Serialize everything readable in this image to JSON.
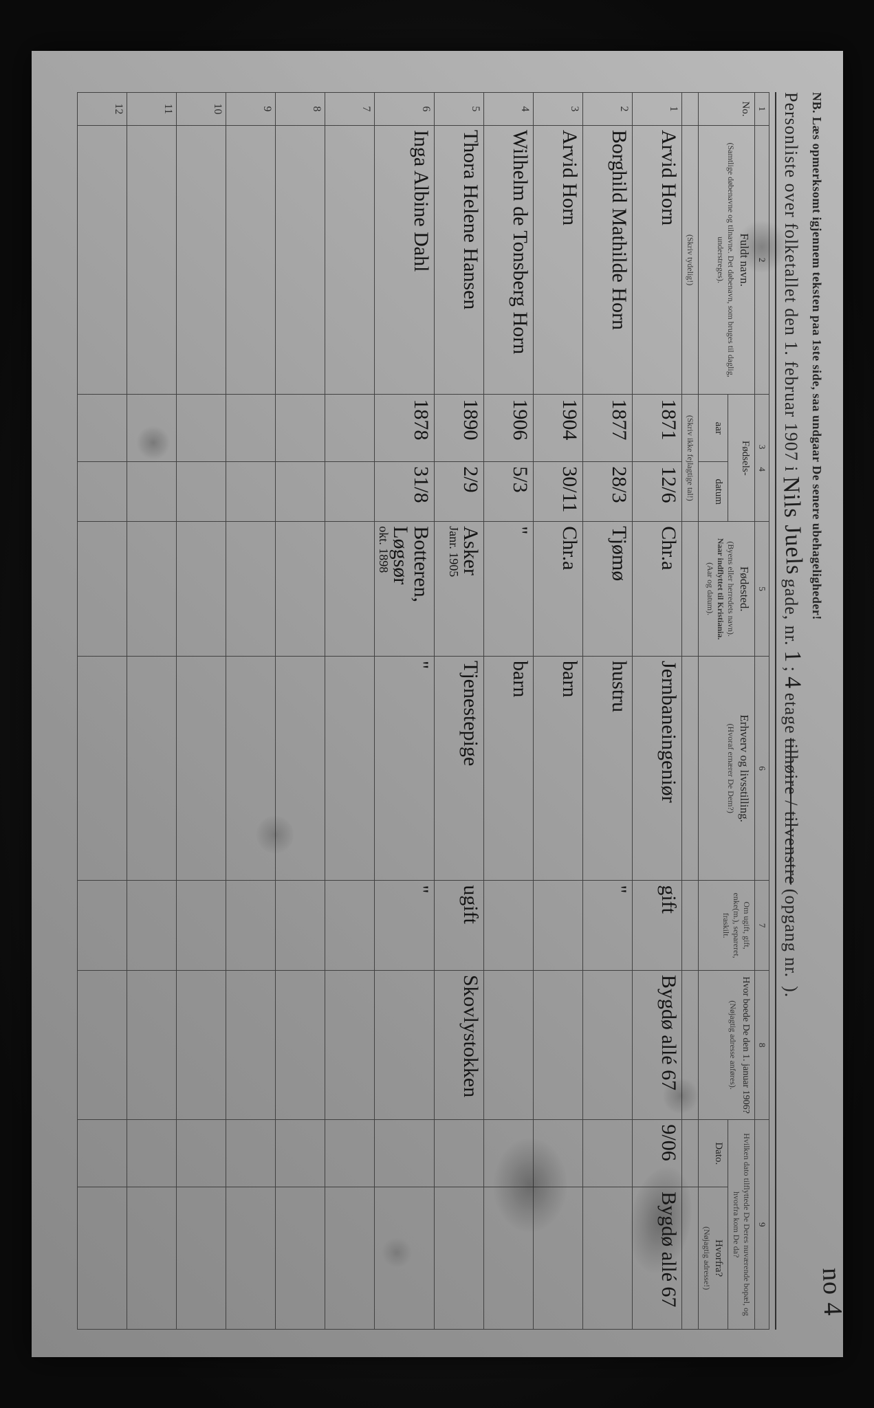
{
  "nb": "NB.  Læs opmerksomt igjennem teksten paa 1ste side, saa undgaar De senere ubehageligheder!",
  "title": {
    "prefix": "Personliste over folketallet den 1. februar 1907 i",
    "street_hand": "Nils Juels",
    "gade": "gade, nr.",
    "nr_hand": "1",
    "sep": ";",
    "etage_hand": "4",
    "etage": "etage",
    "side_strike": "tilhøire / tilvenstre",
    "opgang": "(opgang nr.",
    "opgang_hand": "",
    "end": ").",
    "corner_hand": "no 4"
  },
  "columns": {
    "nums": [
      "1",
      "2",
      "3",
      "4",
      "5",
      "6",
      "7",
      "8",
      "9"
    ],
    "no": "No.",
    "name": {
      "main": "Fuldt navn.",
      "sub": "(Samtlige døbenavne og tilnavne. Det døbenavn, som bruges til daglig, understreges)."
    },
    "birth": {
      "main": "Fødsels-",
      "aar": "aar",
      "datum": "datum"
    },
    "birthplace": {
      "main": "Fødested.",
      "sub1": "(Byens eller herredets navn).",
      "sub2": "Naar indflyttet til Kristiania.",
      "sub3": "(Aar og datum)."
    },
    "occupation": {
      "main": "Erhverv og livsstilling.",
      "sub": "(Hvoraf ernærer De Dem?)"
    },
    "marital": {
      "main": "Om ugift, gift, enke(m.), separeret, fraskilt."
    },
    "prev_addr": {
      "main": "Hvor boede De den 1. januar 1906?",
      "sub": "(Nøjagtig adresse anføres)."
    },
    "moved": {
      "main": "Hvilken dato tilflyttede De Deres nuværende bopæl, og hvorfra kom De da?",
      "dato": "Dato.",
      "hvorfra": "Hvorfra?",
      "hvorfra_sub": "(Nøjagtig adresse!)"
    },
    "instr_name": "(Skriv tydelig!)",
    "instr_birth": "(Skriv ikke fejlagtige tal!)"
  },
  "rows": [
    {
      "no": "1",
      "name": "Arvid  Horn",
      "aar": "1871",
      "datum": "12/6",
      "birthplace": "Chr.a",
      "occupation": "Jernbaneingeniør",
      "marital": "gift",
      "prev_addr": "Bygdø allé 67",
      "dato": "9/06",
      "hvorfra": "Bygdø allé 67"
    },
    {
      "no": "2",
      "name": "Borghild Mathilde Horn",
      "aar": "1877",
      "datum": "28/3",
      "birthplace": "Tjømø",
      "occupation": "hustru",
      "marital": "\"",
      "prev_addr": "",
      "dato": "",
      "hvorfra": ""
    },
    {
      "no": "3",
      "name": "Arvid  Horn",
      "aar": "1904",
      "datum": "30/11",
      "birthplace": "Chr.a",
      "occupation": "barn",
      "marital": "",
      "prev_addr": "",
      "dato": "",
      "hvorfra": ""
    },
    {
      "no": "4",
      "name": "Wilhelm de Tonsberg Horn",
      "aar": "1906",
      "datum": "5/3",
      "birthplace": "\"",
      "occupation": "barn",
      "marital": "",
      "prev_addr": "",
      "dato": "",
      "hvorfra": ""
    },
    {
      "no": "5",
      "name": "Thora  Helene  Hansen",
      "aar": "1890",
      "datum": "2/9",
      "birthplace": "Asker",
      "birthplace_sub": "Janr. 1905",
      "occupation": "Tjenestepige",
      "marital": "ugift",
      "prev_addr": "Skovlystokken",
      "dato": "",
      "hvorfra": ""
    },
    {
      "no": "6",
      "name": "Inga  Albine  Dahl",
      "aar": "1878",
      "datum": "31/8",
      "birthplace": "Botteren, Løgsør",
      "birthplace_sub": "okt. 1898",
      "occupation": "\"",
      "marital": "\"",
      "prev_addr": "",
      "dato": "",
      "hvorfra": ""
    },
    {
      "no": "7",
      "name": "",
      "aar": "",
      "datum": "",
      "birthplace": "",
      "occupation": "",
      "marital": "",
      "prev_addr": "",
      "dato": "",
      "hvorfra": ""
    },
    {
      "no": "8",
      "name": "",
      "aar": "",
      "datum": "",
      "birthplace": "",
      "occupation": "",
      "marital": "",
      "prev_addr": "",
      "dato": "",
      "hvorfra": ""
    },
    {
      "no": "9",
      "name": "",
      "aar": "",
      "datum": "",
      "birthplace": "",
      "occupation": "",
      "marital": "",
      "prev_addr": "",
      "dato": "",
      "hvorfra": ""
    },
    {
      "no": "10",
      "name": "",
      "aar": "",
      "datum": "",
      "birthplace": "",
      "occupation": "",
      "marital": "",
      "prev_addr": "",
      "dato": "",
      "hvorfra": ""
    },
    {
      "no": "11",
      "name": "",
      "aar": "",
      "datum": "",
      "birthplace": "",
      "occupation": "",
      "marital": "",
      "prev_addr": "",
      "dato": "",
      "hvorfra": ""
    },
    {
      "no": "12",
      "name": "",
      "aar": "",
      "datum": "",
      "birthplace": "",
      "occupation": "",
      "marital": "",
      "prev_addr": "",
      "dato": "",
      "hvorfra": ""
    }
  ]
}
